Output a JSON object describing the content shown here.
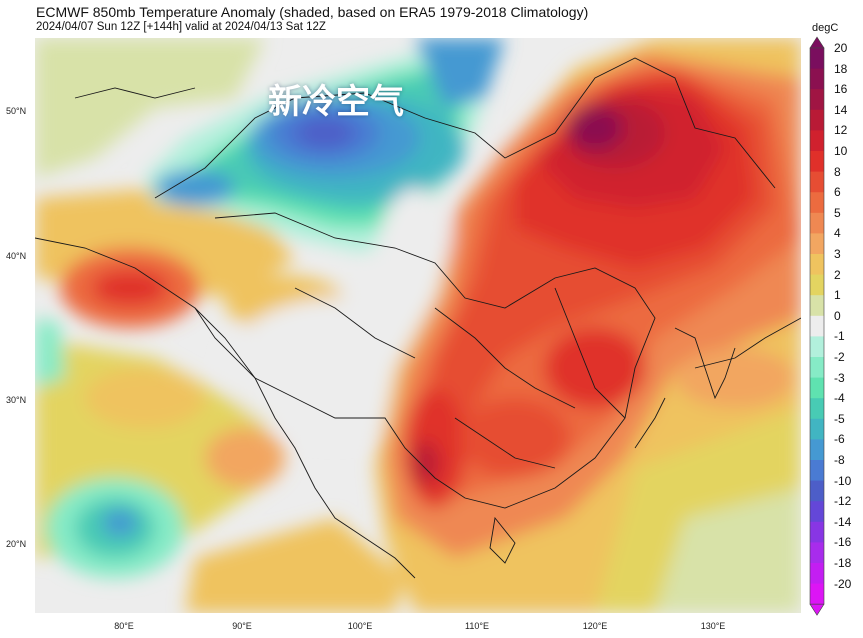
{
  "title": "ECMWF 850mb Temperature Anomaly (shaded, based on ERA5 1979-2018 Climatology)",
  "subtitle": "2024/04/07 Sun 12Z [+144h] valid at 2024/04/13 Sat 12Z",
  "overlay_label": "新冷空气",
  "map": {
    "lat_labels": [
      "50°N",
      "40°N",
      "30°N",
      "20°N"
    ],
    "lon_labels": [
      "80°E",
      "90°E",
      "100°E",
      "110°E",
      "120°E",
      "130°E"
    ]
  },
  "colorbar": {
    "unit": "degC",
    "ticks": [
      "20",
      "18",
      "16",
      "14",
      "12",
      "10",
      "8",
      "6",
      "5",
      "4",
      "3",
      "2",
      "1",
      "0",
      "-1",
      "-2",
      "-3",
      "-4",
      "-5",
      "-6",
      "-8",
      "-10",
      "-12",
      "-14",
      "-16",
      "-18",
      "-20"
    ],
    "colors": [
      "#7a0e5e",
      "#8b1050",
      "#a01543",
      "#b91a36",
      "#d0212e",
      "#e0302a",
      "#e64d33",
      "#ec6b3f",
      "#ef8852",
      "#f2a661",
      "#efc35f",
      "#e3d461",
      "#d8e2a8",
      "#ededed",
      "#b2f0dc",
      "#86ebc6",
      "#5fe2b0",
      "#48cbb4",
      "#41b5c2",
      "#4599d2",
      "#4a7bd3",
      "#4d5ec8",
      "#6447d8",
      "#8836e4",
      "#a82cec",
      "#c31ef2",
      "#dc15f5"
    ]
  }
}
